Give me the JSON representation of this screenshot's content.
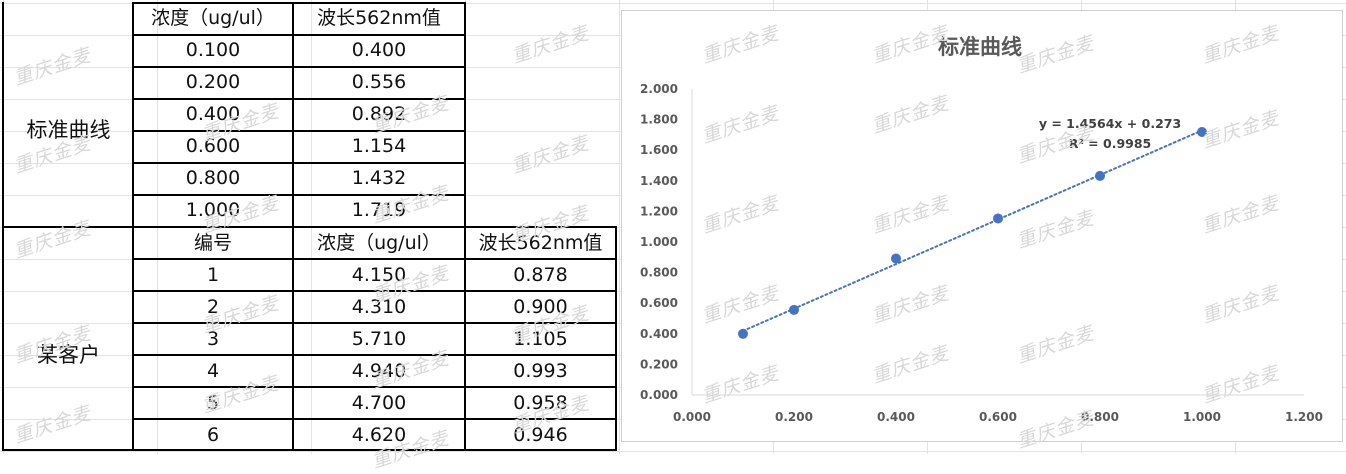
{
  "watermark": "重庆金麦",
  "standard_table": {
    "section_label": "标准曲线",
    "headers": [
      "浓度（ug/ul）",
      "波长562nm值"
    ],
    "rows": [
      [
        "0.100",
        "0.400"
      ],
      [
        "0.200",
        "0.556"
      ],
      [
        "0.400",
        "0.892"
      ],
      [
        "0.600",
        "1.154"
      ],
      [
        "0.800",
        "1.432"
      ],
      [
        "1.000",
        "1.719"
      ]
    ]
  },
  "client_table": {
    "section_label": "某客户",
    "headers": [
      "编号",
      "浓度（ug/ul）",
      "波长562nm值"
    ],
    "rows": [
      [
        "1",
        "4.150",
        "0.878"
      ],
      [
        "2",
        "4.310",
        "0.900"
      ],
      [
        "3",
        "5.710",
        "1.105"
      ],
      [
        "4",
        "4.940",
        "0.993"
      ],
      [
        "5",
        "4.700",
        "0.958"
      ],
      [
        "6",
        "4.620",
        "0.946"
      ]
    ]
  },
  "chart_data": {
    "type": "scatter",
    "title": "标准曲线",
    "xlabel": "",
    "ylabel": "",
    "x": [
      0.1,
      0.2,
      0.4,
      0.6,
      0.8,
      1.0
    ],
    "y": [
      0.4,
      0.556,
      0.892,
      1.154,
      1.432,
      1.719
    ],
    "xlim": [
      0,
      1.2
    ],
    "ylim": [
      0,
      2.0
    ],
    "x_ticks": [
      "0.000",
      "0.200",
      "0.400",
      "0.600",
      "0.800",
      "1.000",
      "1.200"
    ],
    "y_ticks": [
      "0.000",
      "0.200",
      "0.400",
      "0.600",
      "0.800",
      "1.000",
      "1.200",
      "1.400",
      "1.600",
      "1.800",
      "2.000"
    ],
    "trendline": {
      "type": "linear",
      "slope": 1.4564,
      "intercept": 0.273,
      "style": "dotted"
    },
    "equation_label": "y = 1.4564x + 0.273",
    "r2_label": "R² = 0.9985",
    "grid": false,
    "legend": "none",
    "marker_color": "#4472c4",
    "trend_color": "#4472c4"
  }
}
